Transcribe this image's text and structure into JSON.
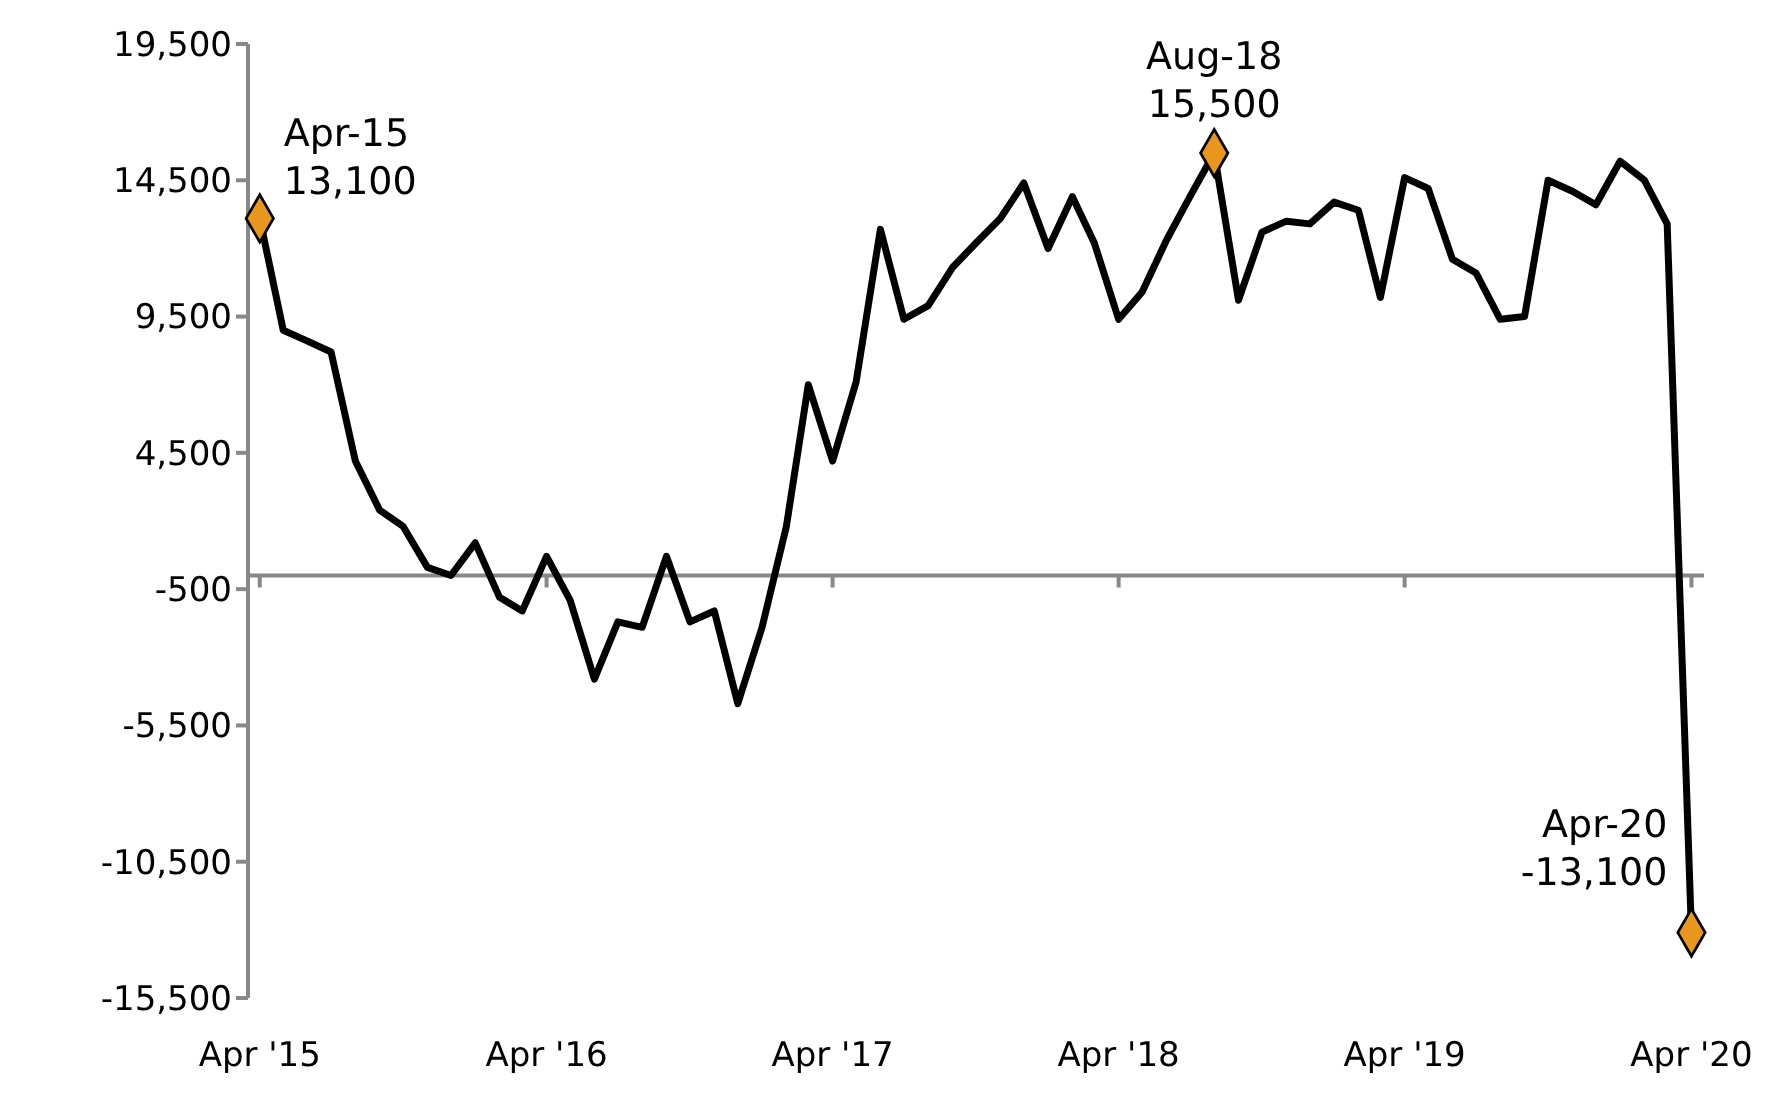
{
  "chart_data": {
    "type": "line",
    "x": [
      "2015-04",
      "2015-05",
      "2015-06",
      "2015-07",
      "2015-08",
      "2015-09",
      "2015-10",
      "2015-11",
      "2015-12",
      "2016-01",
      "2016-02",
      "2016-03",
      "2016-04",
      "2016-05",
      "2016-06",
      "2016-07",
      "2016-08",
      "2016-09",
      "2016-10",
      "2016-11",
      "2016-12",
      "2017-01",
      "2017-02",
      "2017-03",
      "2017-04",
      "2017-05",
      "2017-06",
      "2017-07",
      "2017-08",
      "2017-09",
      "2017-10",
      "2017-11",
      "2017-12",
      "2018-01",
      "2018-02",
      "2018-03",
      "2018-04",
      "2018-05",
      "2018-06",
      "2018-07",
      "2018-08",
      "2018-09",
      "2018-10",
      "2018-11",
      "2018-12",
      "2019-01",
      "2019-02",
      "2019-03",
      "2019-04",
      "2019-05",
      "2019-06",
      "2019-07",
      "2019-08",
      "2019-09",
      "2019-10",
      "2019-11",
      "2019-12",
      "2020-01",
      "2020-02",
      "2020-03",
      "2020-04"
    ],
    "series": [
      {
        "color": "#000000",
        "marker": "none",
        "values": [
          13100,
          9000,
          8600,
          8200,
          4200,
          2400,
          1800,
          300,
          0,
          1200,
          -800,
          -1300,
          700,
          -900,
          -3800,
          -1700,
          -1900,
          700,
          -1700,
          -1300,
          -4700,
          -1900,
          1800,
          7000,
          4200,
          7100,
          12700,
          9400,
          9900,
          11300,
          12200,
          13100,
          14400,
          12000,
          13900,
          12200,
          9400,
          10400,
          12300,
          13900,
          15500,
          10100,
          12600,
          13000,
          12900,
          13700,
          13400,
          10200,
          14600,
          14200,
          11600,
          11100,
          9400,
          9500,
          14500,
          14100,
          13600,
          15200,
          14500,
          12900,
          -13100
        ]
      },
      {
        "type": "scatter",
        "color": "#e8961e",
        "marker": "diamond",
        "x": [
          "2015-04",
          "2018-08",
          "2020-04"
        ],
        "values": [
          13100,
          15500,
          -13100
        ]
      }
    ],
    "xlim": [
      "2015-03-17",
      "2020-04-17"
    ],
    "xticks": [
      {
        "value": "2015-04",
        "label": "Apr '15"
      },
      {
        "value": "2016-04",
        "label": "Apr '16"
      },
      {
        "value": "2017-04",
        "label": "Apr '17"
      },
      {
        "value": "2018-04",
        "label": "Apr '18"
      },
      {
        "value": "2019-04",
        "label": "Apr '19"
      },
      {
        "value": "2020-04",
        "label": "Apr '20"
      }
    ],
    "ylim": [
      -15500,
      19500
    ],
    "yticks": [
      {
        "value": -15500,
        "label": "-15,500"
      },
      {
        "value": -10500,
        "label": "-10,500"
      },
      {
        "value": -5500,
        "label": "-5,500"
      },
      {
        "value": -500,
        "label": "-500"
      },
      {
        "value": 4500,
        "label": "4,500"
      },
      {
        "value": 9500,
        "label": "9,500"
      },
      {
        "value": 14500,
        "label": "14,500"
      },
      {
        "value": 19500,
        "label": "19,500"
      }
    ],
    "annotations": [
      {
        "text": "Apr-15\n13,100",
        "x": "2015-04",
        "y": 13100
      },
      {
        "text": "Aug-18\n15,500",
        "x": "2018-08",
        "y": 15500
      },
      {
        "text": "Apr-20\n-13,100",
        "x": "2020-04",
        "y": -13100
      }
    ]
  }
}
